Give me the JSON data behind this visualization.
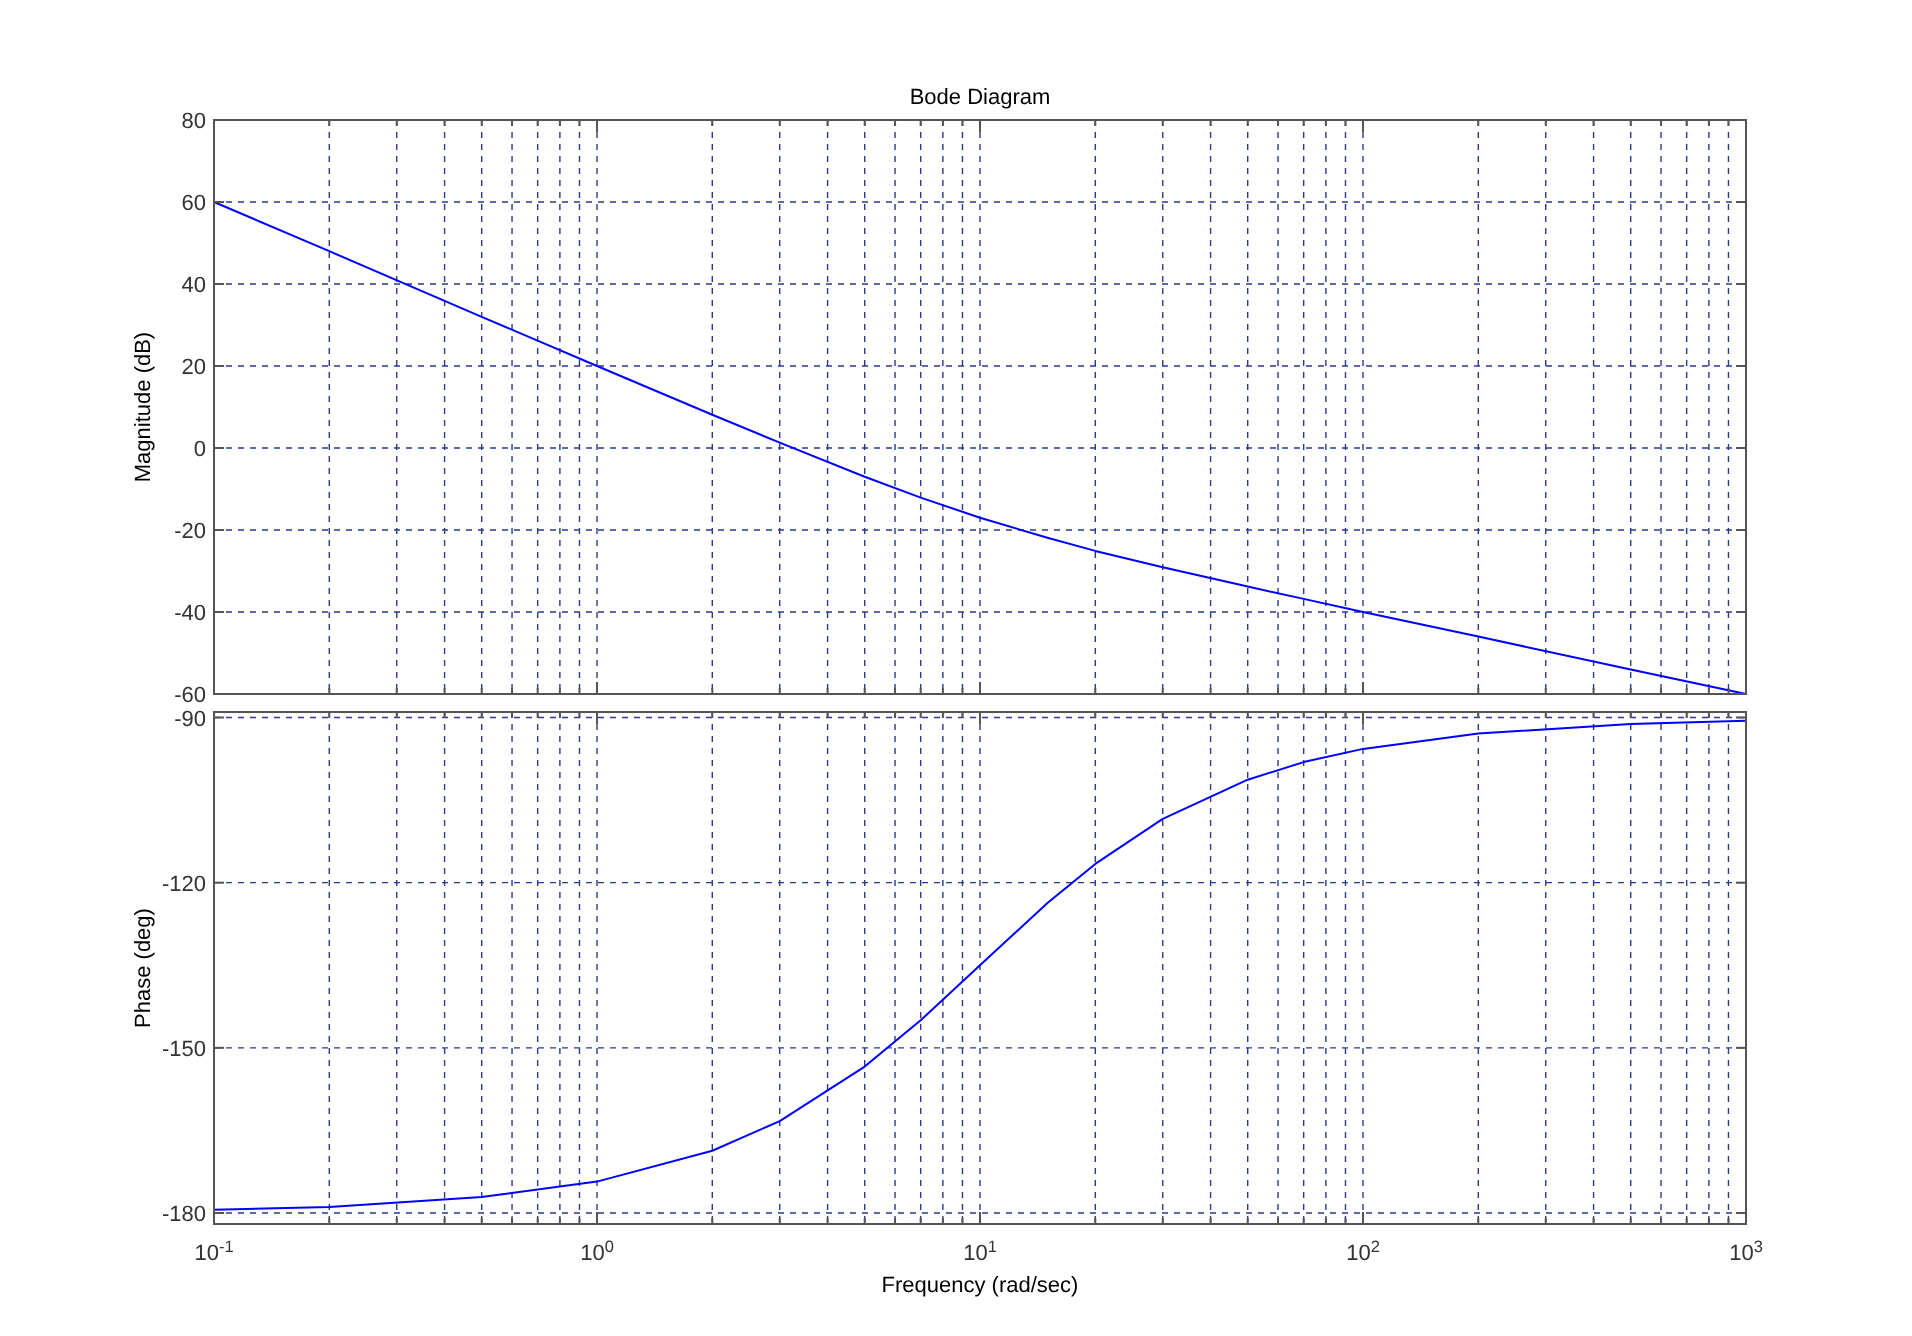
{
  "chart_data": [
    {
      "type": "line",
      "title": "Bode Diagram",
      "ylabel": "Magnitude (dB)",
      "log": "x",
      "grid": true,
      "tick_labels": "y",
      "line_style": "solid",
      "marker": "none",
      "x": [
        0.1,
        0.2,
        0.5,
        1,
        2,
        3,
        5,
        7,
        10,
        15,
        20,
        30,
        50,
        70,
        100,
        200,
        500,
        1000
      ],
      "series": [
        {
          "color": "#0000ff",
          "values": [
            60.0,
            48.0,
            32.0,
            20.0,
            8.1,
            1.3,
            -7.0,
            -12.1,
            -17.0,
            -21.9,
            -25.1,
            -29.1,
            -33.8,
            -36.8,
            -40.0,
            -46.0,
            -54.0,
            -60.0
          ]
        }
      ],
      "xlim": [
        0.1,
        1000
      ],
      "xticks": [
        {
          "value": 0.1,
          "label": null
        },
        {
          "value": 0.2,
          "label": null
        },
        {
          "value": 0.3,
          "label": null
        },
        {
          "value": 0.4,
          "label": null
        },
        {
          "value": 0.5,
          "label": null
        },
        {
          "value": 0.6,
          "label": null
        },
        {
          "value": 0.7,
          "label": null
        },
        {
          "value": 0.8,
          "label": null
        },
        {
          "value": 0.9,
          "label": null
        },
        {
          "value": 1,
          "label": null
        },
        {
          "value": 2,
          "label": null
        },
        {
          "value": 3,
          "label": null
        },
        {
          "value": 4,
          "label": null
        },
        {
          "value": 5,
          "label": null
        },
        {
          "value": 6,
          "label": null
        },
        {
          "value": 7,
          "label": null
        },
        {
          "value": 8,
          "label": null
        },
        {
          "value": 9,
          "label": null
        },
        {
          "value": 10,
          "label": null
        },
        {
          "value": 20,
          "label": null
        },
        {
          "value": 30,
          "label": null
        },
        {
          "value": 40,
          "label": null
        },
        {
          "value": 50,
          "label": null
        },
        {
          "value": 60,
          "label": null
        },
        {
          "value": 70,
          "label": null
        },
        {
          "value": 80,
          "label": null
        },
        {
          "value": 90,
          "label": null
        },
        {
          "value": 100,
          "label": null
        },
        {
          "value": 200,
          "label": null
        },
        {
          "value": 300,
          "label": null
        },
        {
          "value": 400,
          "label": null
        },
        {
          "value": 500,
          "label": null
        },
        {
          "value": 600,
          "label": null
        },
        {
          "value": 700,
          "label": null
        },
        {
          "value": 800,
          "label": null
        },
        {
          "value": 900,
          "label": null
        },
        {
          "value": 1000,
          "label": null
        }
      ],
      "ylim": [
        -60,
        80
      ],
      "yticks": [
        -60,
        -40,
        -20,
        0,
        20,
        40,
        60,
        80
      ]
    },
    {
      "type": "line",
      "xlabel": "Frequency  (rad/sec)",
      "ylabel": "Phase (deg)",
      "log": "x",
      "grid": true,
      "line_style": "solid",
      "marker": "none",
      "x": [
        0.1,
        0.2,
        0.5,
        1,
        2,
        3,
        5,
        7,
        10,
        15,
        20,
        30,
        50,
        70,
        100,
        200,
        500,
        1000
      ],
      "series": [
        {
          "color": "#0000ff",
          "values": [
            -179.4,
            -178.9,
            -177.1,
            -174.3,
            -168.7,
            -163.3,
            -153.4,
            -145.0,
            -135.0,
            -123.7,
            -116.6,
            -108.4,
            -101.3,
            -98.1,
            -95.7,
            -92.9,
            -91.2,
            -90.6
          ]
        }
      ],
      "xlim": [
        0.1,
        1000
      ],
      "xticks": [
        {
          "value": 0.1,
          "label": "10$^{-1}$"
        },
        {
          "value": 0.2,
          "label": null
        },
        {
          "value": 0.3,
          "label": null
        },
        {
          "value": 0.4,
          "label": null
        },
        {
          "value": 0.5,
          "label": null
        },
        {
          "value": 0.6,
          "label": null
        },
        {
          "value": 0.7,
          "label": null
        },
        {
          "value": 0.8,
          "label": null
        },
        {
          "value": 0.9,
          "label": null
        },
        {
          "value": 1,
          "label": "10$^{0}$"
        },
        {
          "value": 2,
          "label": null
        },
        {
          "value": 3,
          "label": null
        },
        {
          "value": 4,
          "label": null
        },
        {
          "value": 5,
          "label": null
        },
        {
          "value": 6,
          "label": null
        },
        {
          "value": 7,
          "label": null
        },
        {
          "value": 8,
          "label": null
        },
        {
          "value": 9,
          "label": null
        },
        {
          "value": 10,
          "label": "10$^{1}$"
        },
        {
          "value": 20,
          "label": null
        },
        {
          "value": 30,
          "label": null
        },
        {
          "value": 40,
          "label": null
        },
        {
          "value": 50,
          "label": null
        },
        {
          "value": 60,
          "label": null
        },
        {
          "value": 70,
          "label": null
        },
        {
          "value": 80,
          "label": null
        },
        {
          "value": 90,
          "label": null
        },
        {
          "value": 100,
          "label": "10$^{2}$"
        },
        {
          "value": 200,
          "label": null
        },
        {
          "value": 300,
          "label": null
        },
        {
          "value": 400,
          "label": null
        },
        {
          "value": 500,
          "label": null
        },
        {
          "value": 600,
          "label": null
        },
        {
          "value": 700,
          "label": null
        },
        {
          "value": 800,
          "label": null
        },
        {
          "value": 900,
          "label": null
        },
        {
          "value": 1000,
          "label": "10$^{3}$"
        }
      ],
      "ylim": [
        -182,
        -89
      ],
      "yticks": [
        -180,
        -150,
        -120,
        -90
      ]
    }
  ]
}
